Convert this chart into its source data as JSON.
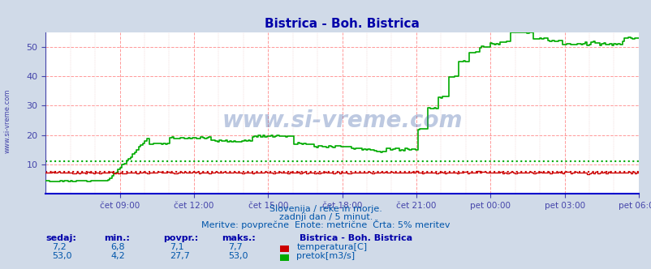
{
  "title": "Bistrica - Boh. Bistrica",
  "subtitle1": "Slovenija / reke in morje.",
  "subtitle2": "zadnji dan / 5 minut.",
  "subtitle3": "Meritve: povprečne  Enote: metrične  Črta: 5% meritev",
  "bg_color": "#d0dae8",
  "plot_bg_color": "#ffffff",
  "title_color": "#0000aa",
  "axis_color": "#4444aa",
  "label_color": "#0055aa",
  "watermark": "www.si-vreme.com",
  "watermark_color": "#4466aa",
  "ylim": [
    0,
    55
  ],
  "temp_color": "#cc0000",
  "flow_color": "#00aa00",
  "temp_avg_line": 7.5,
  "flow_avg_line": 11.0,
  "n_points": 288,
  "x_tick_labels": [
    "čet 09:00",
    "čet 12:00",
    "čet 15:00",
    "čet 18:00",
    "čet 21:00",
    "pet 00:00",
    "pet 03:00",
    "pet 06:00"
  ],
  "legend_title": "Bistrica - Boh. Bistrica",
  "legend_temp": "temperatura[C]",
  "legend_flow": "pretok[m3/s]",
  "table_headers": [
    "sedaj:",
    "min.:",
    "povpr.:",
    "maks.:"
  ],
  "temp_sedaj": "7,2",
  "temp_min": "6,8",
  "temp_povpr": "7,1",
  "temp_maks": "7,7",
  "flow_sedaj": "53,0",
  "flow_min": "4,2",
  "flow_povpr": "27,7",
  "flow_maks": "53,0",
  "left_label": "www.si-vreme.com"
}
